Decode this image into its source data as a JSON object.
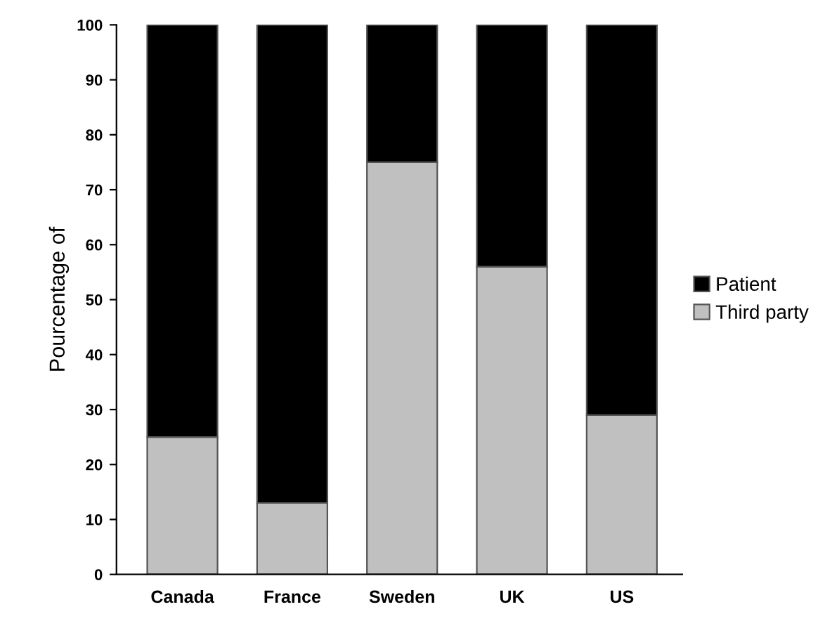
{
  "chart_data": {
    "type": "bar",
    "stacked": true,
    "ylabel": "Pourcentage of",
    "categories": [
      "Canada",
      "France",
      "Sweden",
      "UK",
      "US"
    ],
    "series": [
      {
        "name": "Third party",
        "color": "#c0c0c0",
        "values": [
          25,
          13,
          75,
          56,
          29
        ]
      },
      {
        "name": "Patient",
        "color": "#000000",
        "values": [
          75,
          87,
          25,
          44,
          71
        ]
      }
    ],
    "ylim": [
      0,
      100
    ],
    "yticks": [
      0,
      10,
      20,
      30,
      40,
      50,
      60,
      70,
      80,
      90,
      100
    ],
    "grid": false,
    "legend": "right"
  }
}
